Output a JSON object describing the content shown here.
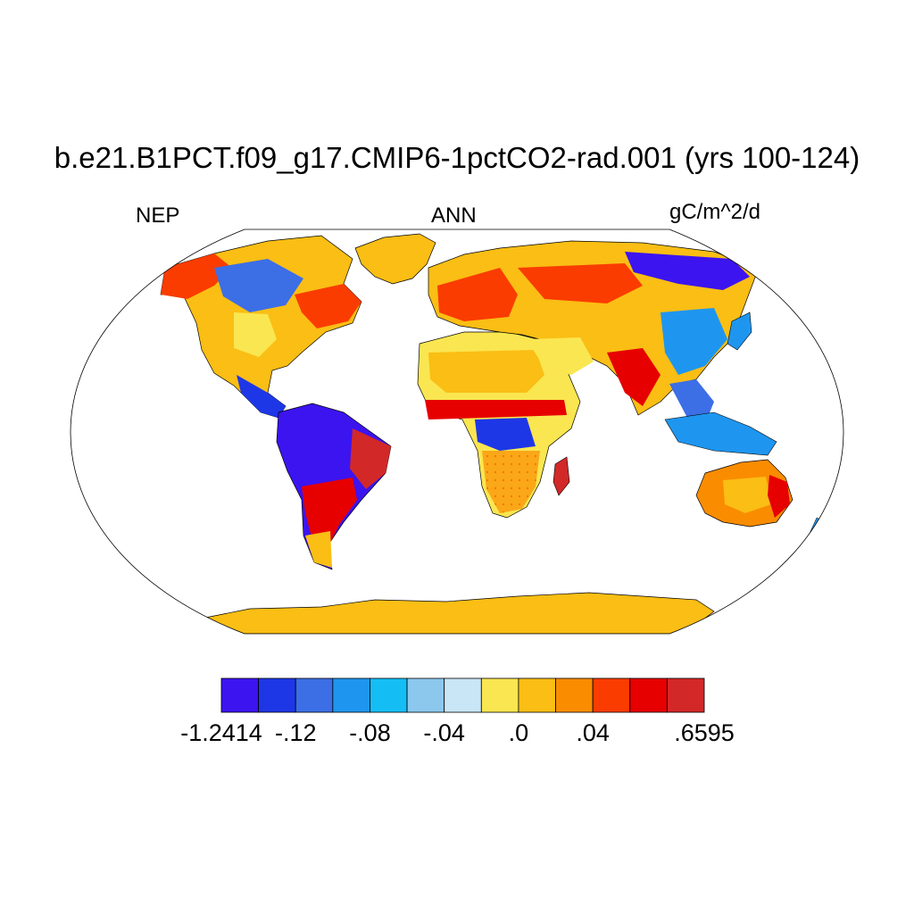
{
  "header": {
    "title": "b.e21.B1PCT.f09_g17.CMIP6-1pctCO2-rad.001 (yrs 100-124)",
    "variable": "NEP",
    "season": "ANN",
    "units": "gC/m^2/d"
  },
  "colorbar": {
    "colors": [
      "#3c14f0",
      "#1e37e6",
      "#3c6ee6",
      "#1e96f0",
      "#14bef5",
      "#8cc8ee",
      "#c8e6f5",
      "#fae650",
      "#fabe14",
      "#fa8c00",
      "#fa3c00",
      "#e60000",
      "#d22828"
    ],
    "labels": [
      {
        "text": "-1.2414",
        "boundary": 0
      },
      {
        "text": "-.12",
        "boundary": 2
      },
      {
        "text": "-.08",
        "boundary": 4
      },
      {
        "text": "-.04",
        "boundary": 6
      },
      {
        "text": ".0",
        "boundary": 8
      },
      {
        "text": ".04",
        "boundary": 10
      },
      {
        "text": ".6595",
        "boundary": 13
      }
    ]
  },
  "map": {
    "projection": "robinson",
    "ocean_color": "#ffffff",
    "land_regions": [
      {
        "name": "north-america",
        "color_index": 8
      },
      {
        "name": "greenland",
        "color_index": 8
      },
      {
        "name": "south-america",
        "color_index": 0
      },
      {
        "name": "africa",
        "color_index": 7
      },
      {
        "name": "eurasia",
        "color_index": 8
      },
      {
        "name": "australia",
        "color_index": 9
      },
      {
        "name": "antarctica",
        "color_index": 8
      }
    ]
  }
}
